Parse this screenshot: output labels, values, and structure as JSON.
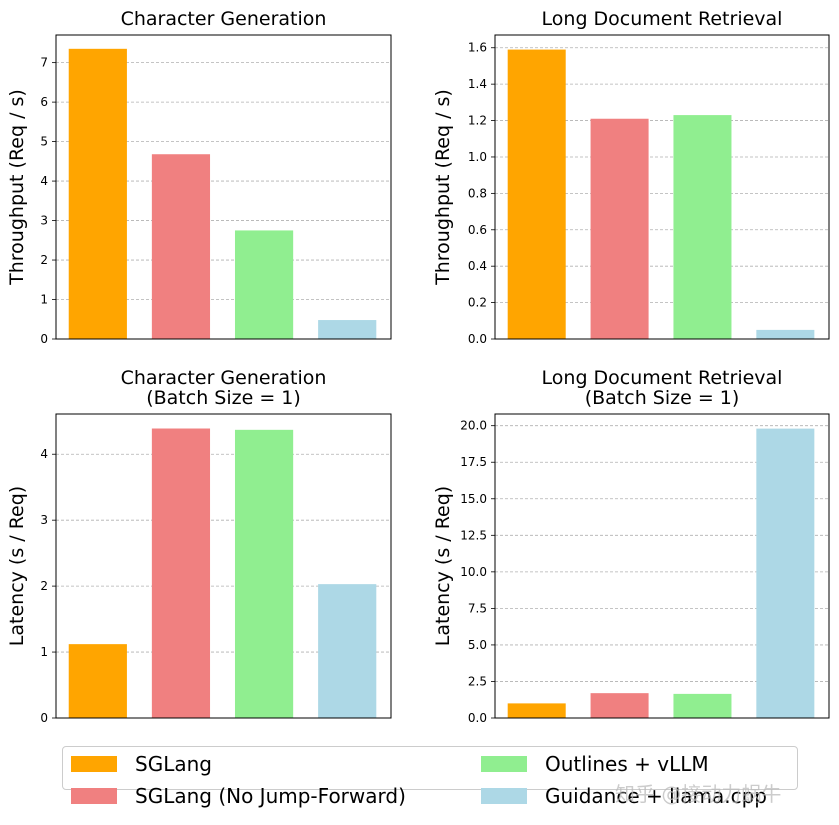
{
  "chart_data": [
    {
      "type": "bar",
      "title": "Character Generation",
      "ylabel": "Throughput (Req / s)",
      "categories": [
        "SGLang",
        "SGLang (No Jump-Forward)",
        "Outlines + vLLM",
        "Guidance + llama.cpp"
      ],
      "values": [
        7.35,
        4.68,
        2.75,
        0.48
      ],
      "ylim": [
        0,
        7.7
      ],
      "yticks": [
        "0",
        "1",
        "2",
        "3",
        "4",
        "5",
        "6",
        "7"
      ],
      "grid": "y-dashed"
    },
    {
      "type": "bar",
      "title": "Long Document Retrieval",
      "ylabel": "Throughput (Req / s)",
      "categories": [
        "SGLang",
        "SGLang (No Jump-Forward)",
        "Outlines + vLLM",
        "Guidance + llama.cpp"
      ],
      "values": [
        1.59,
        1.21,
        1.23,
        0.05
      ],
      "ylim": [
        0,
        1.67
      ],
      "yticks": [
        "0.0",
        "0.2",
        "0.4",
        "0.6",
        "0.8",
        "1.0",
        "1.2",
        "1.4",
        "1.6"
      ],
      "grid": "y-dashed"
    },
    {
      "type": "bar",
      "title": "Character Generation\n(Batch Size = 1)",
      "ylabel": "Latency (s / Req)",
      "categories": [
        "SGLang",
        "SGLang (No Jump-Forward)",
        "Outlines + vLLM",
        "Guidance + llama.cpp"
      ],
      "values": [
        1.12,
        4.39,
        4.37,
        2.03
      ],
      "ylim": [
        0,
        4.61
      ],
      "yticks": [
        "0",
        "1",
        "2",
        "3",
        "4"
      ],
      "grid": "y-dashed"
    },
    {
      "type": "bar",
      "title": "Long Document Retrieval\n(Batch Size = 1)",
      "ylabel": "Latency (s / Req)",
      "categories": [
        "SGLang",
        "SGLang (No Jump-Forward)",
        "Outlines + vLLM",
        "Guidance + llama.cpp"
      ],
      "values": [
        1.0,
        1.7,
        1.65,
        19.8
      ],
      "ylim": [
        0,
        20.8
      ],
      "yticks": [
        "0.0",
        "2.5",
        "5.0",
        "7.5",
        "10.0",
        "12.5",
        "15.0",
        "17.5",
        "20.0"
      ],
      "grid": "y-dashed"
    }
  ],
  "colors": [
    "#FFA500",
    "#F08080",
    "#90EE90",
    "#ADD8E6"
  ],
  "legend": {
    "placement": "bottom",
    "entries": [
      "SGLang",
      "SGLang (No Jump-Forward)",
      "Outlines + vLLM",
      "Guidance + llama.cpp"
    ]
  },
  "watermark": "知乎 @接动力蜗牛"
}
